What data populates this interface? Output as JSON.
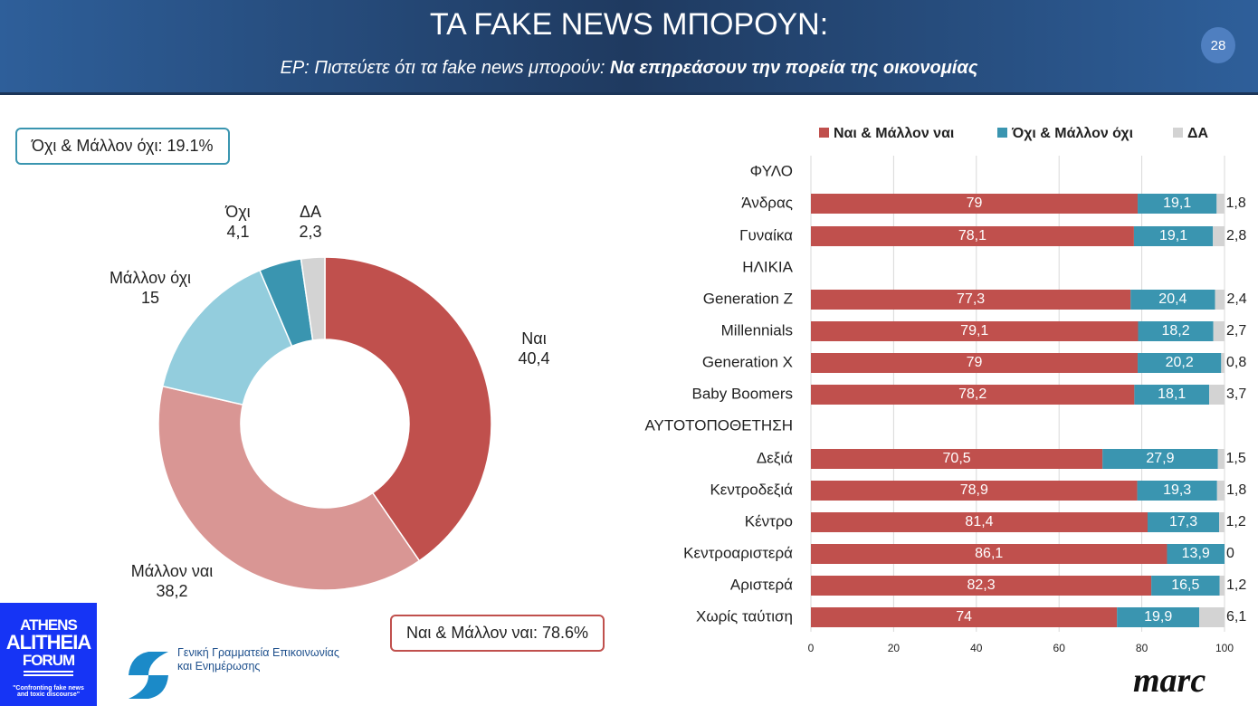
{
  "header": {
    "title": "ΤΑ FAKE NEWS ΜΠΟΡΟΥΝ:",
    "subtitle_prefix": "ΕΡ: Πιστεύετε ότι τα fake news μπορούν: ",
    "subtitle_bold": "Να επηρεάσουν την πορεία της  οικονομίας",
    "page": "28"
  },
  "summary": {
    "no": "Όχι & Μάλλον όχι: 19.1%",
    "yes": "Ναι & Μάλλον ναι: 78.6%"
  },
  "logos": {
    "forum": "ATHENS ALITHEIA FORUM",
    "forum_tagline": "\"Confronting fake news and toxic discourse\"",
    "gov_line1": "Γενική Γραμματεία Επικοινωνίας",
    "gov_line2": "και Ενημέρωσης",
    "marc": "marc"
  },
  "chart_data": [
    {
      "type": "pie",
      "subtype": "donut",
      "slices": [
        {
          "name": "Ναι",
          "value": 40.4,
          "label": "40,4",
          "color": "#c0504d"
        },
        {
          "name": "Μάλλον ναι",
          "value": 38.2,
          "label": "38,2",
          "color": "#d99694"
        },
        {
          "name": "Μάλλον όχι",
          "value": 15,
          "label": "15",
          "color": "#93cddd"
        },
        {
          "name": "Όχι",
          "value": 4.1,
          "label": "4,1",
          "color": "#3a95b0"
        },
        {
          "name": "ΔΑ",
          "value": 2.3,
          "label": "2,3",
          "color": "#d3d3d3"
        }
      ]
    },
    {
      "type": "bar",
      "orientation": "horizontal",
      "stacked": true,
      "xlim": [
        0,
        100
      ],
      "xticks": [
        "0",
        "20",
        "40",
        "60",
        "80",
        "100"
      ],
      "legend": "top",
      "series": [
        {
          "name": "Ναι & Μάλλον ναι",
          "color": "#c0504d"
        },
        {
          "name": "Όχι & Μάλλον όχι",
          "color": "#3a95b0"
        },
        {
          "name": "ΔΑ",
          "color": "#d3d3d3"
        }
      ],
      "rows": [
        {
          "label": "ΦΥΛΟ",
          "header": true
        },
        {
          "label": "Άνδρας",
          "values": [
            79,
            19.1,
            1.8
          ],
          "text": [
            "79",
            "19,1",
            "1,8"
          ]
        },
        {
          "label": "Γυναίκα",
          "values": [
            78.1,
            19.1,
            2.8
          ],
          "text": [
            "78,1",
            "19,1",
            "2,8"
          ]
        },
        {
          "label": "ΗΛΙΚΙΑ",
          "header": true
        },
        {
          "label": "Generation Z",
          "values": [
            77.3,
            20.4,
            2.4
          ],
          "text": [
            "77,3",
            "20,4",
            "2,4"
          ]
        },
        {
          "label": "Millennials",
          "values": [
            79.1,
            18.2,
            2.7
          ],
          "text": [
            "79,1",
            "18,2",
            "2,7"
          ]
        },
        {
          "label": "Generation X",
          "values": [
            79,
            20.2,
            0.8
          ],
          "text": [
            "79",
            "20,2",
            "0,8"
          ]
        },
        {
          "label": "Baby Boomers",
          "values": [
            78.2,
            18.1,
            3.7
          ],
          "text": [
            "78,2",
            "18,1",
            "3,7"
          ]
        },
        {
          "label": "ΑΥΤΟΤΟΠΟΘΕΤΗΣΗ",
          "header": true
        },
        {
          "label": "Δεξιά",
          "values": [
            70.5,
            27.9,
            1.5
          ],
          "text": [
            "70,5",
            "27,9",
            "1,5"
          ]
        },
        {
          "label": "Κεντροδεξιά",
          "values": [
            78.9,
            19.3,
            1.8
          ],
          "text": [
            "78,9",
            "19,3",
            "1,8"
          ]
        },
        {
          "label": "Κέντρο",
          "values": [
            81.4,
            17.3,
            1.2
          ],
          "text": [
            "81,4",
            "17,3",
            "1,2"
          ]
        },
        {
          "label": "Κεντροαριστερά",
          "values": [
            86.1,
            13.9,
            0
          ],
          "text": [
            "86,1",
            "13,9",
            "0"
          ]
        },
        {
          "label": "Αριστερά",
          "values": [
            82.3,
            16.5,
            1.2
          ],
          "text": [
            "82,3",
            "16,5",
            "1,2"
          ]
        },
        {
          "label": "Χωρίς ταύτιση",
          "values": [
            74,
            19.9,
            6.1
          ],
          "text": [
            "74",
            "19,9",
            "6,1"
          ]
        }
      ]
    }
  ]
}
